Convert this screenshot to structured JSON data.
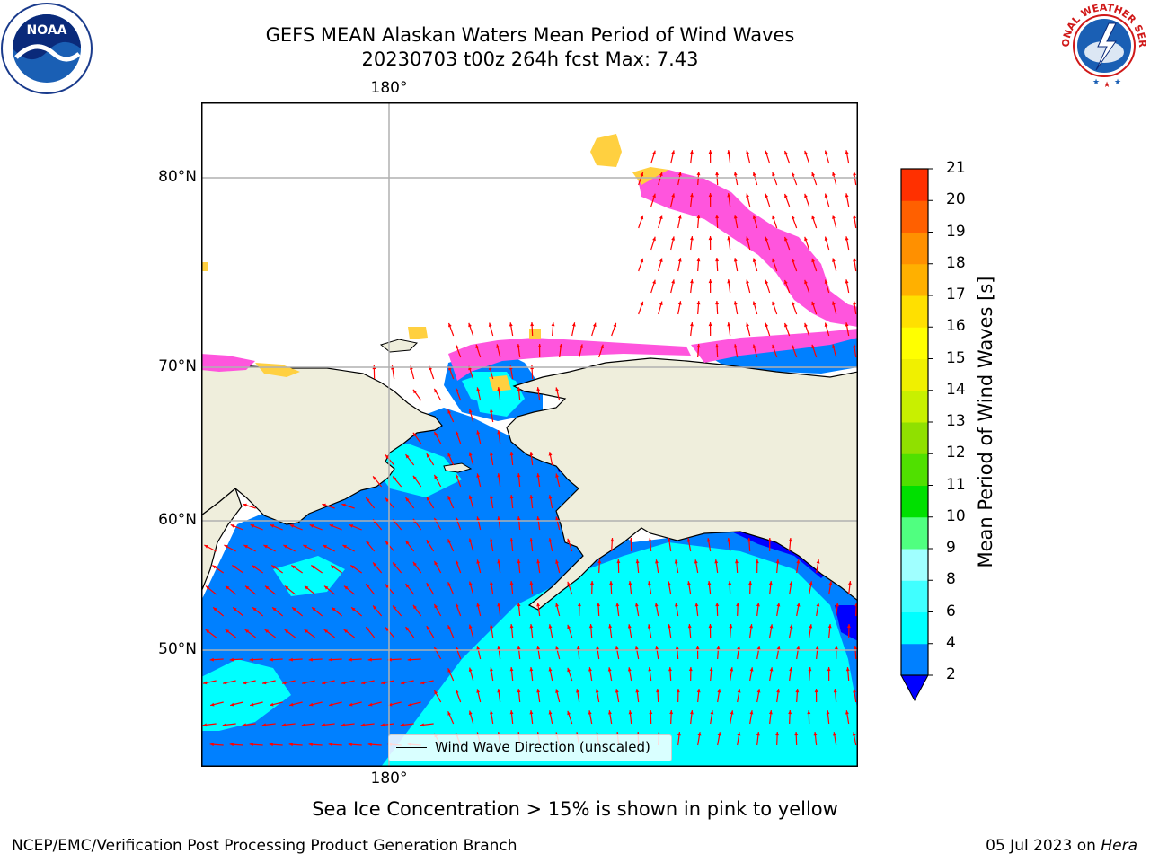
{
  "title": {
    "line1": "GEFS MEAN Alaskan Waters Mean Period of Wind Waves",
    "line2": "20230703 t00z 264h fcst   Max: 7.43"
  },
  "logos": {
    "left": {
      "name": "noaa-logo",
      "text": "NOAA"
    },
    "right": {
      "name": "nws-logo",
      "text": "NATIONAL WEATHER SERVICE"
    }
  },
  "map": {
    "lon_labels_top": [
      "180°"
    ],
    "lon_labels_bottom": [
      "180°"
    ],
    "lat_labels": [
      "80°N",
      "70°N",
      "60°N",
      "50°N"
    ],
    "legend_label": "Wind Wave Direction (unscaled)",
    "land_color": "#efeedc",
    "arrow_color": "#ff0000"
  },
  "colorbar": {
    "title": "Mean Period of Wind Waves [s]",
    "ticks": [
      "2",
      "4",
      "6",
      "8",
      "9",
      "10",
      "11",
      "12",
      "13",
      "14",
      "15",
      "16",
      "17",
      "18",
      "19",
      "20",
      "21"
    ],
    "colors": [
      "#0080ff",
      "#00ffff",
      "#40ffff",
      "#a0ffff",
      "#50ff80",
      "#00e000",
      "#50e000",
      "#90e000",
      "#c8f000",
      "#f0f000",
      "#ffff00",
      "#ffe000",
      "#ffb000",
      "#ff9000",
      "#ff6000",
      "#ff3000"
    ],
    "under_color": "#0000ff"
  },
  "caption": "Sea Ice Concentration > 15% is shown in pink to yellow",
  "footer": {
    "left": "NCEP/EMC/Verification Post Processing Product Generation Branch",
    "right_date": "05 Jul 2023 on ",
    "right_host": "Hera"
  }
}
